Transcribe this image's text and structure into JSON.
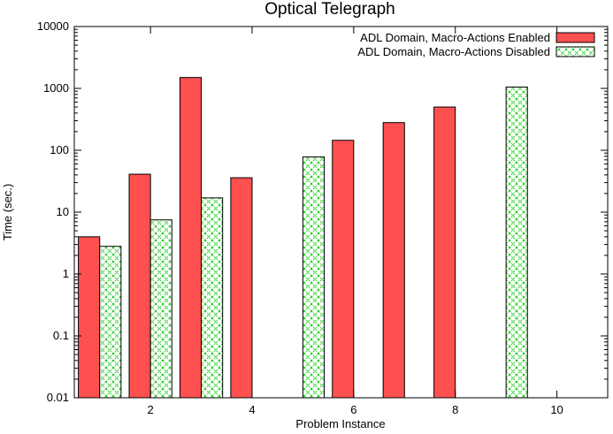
{
  "chart_data": {
    "type": "bar",
    "title": "Optical Telegraph",
    "xlabel": "Problem Instance",
    "ylabel": "Time (sec.)",
    "yscale": "log",
    "ylim": [
      0.01,
      10000
    ],
    "xlim": [
      0.5,
      11
    ],
    "y_ticks": [
      {
        "value": 0.01,
        "label": "0.01"
      },
      {
        "value": 0.1,
        "label": "0.1"
      },
      {
        "value": 1,
        "label": "1"
      },
      {
        "value": 10,
        "label": "10"
      },
      {
        "value": 100,
        "label": "100"
      },
      {
        "value": 1000,
        "label": "1000"
      },
      {
        "value": 10000,
        "label": "10000"
      }
    ],
    "x_ticks": [
      {
        "value": 2,
        "label": "2"
      },
      {
        "value": 4,
        "label": "4"
      },
      {
        "value": 6,
        "label": "6"
      },
      {
        "value": 8,
        "label": "8"
      },
      {
        "value": 10,
        "label": "10"
      }
    ],
    "categories": [
      1,
      2,
      3,
      4,
      5,
      6,
      7,
      8,
      9,
      10
    ],
    "legend_position": "top-right",
    "grid": false,
    "series": [
      {
        "name": "ADL Domain, Macro-Actions Enabled",
        "color": "#ff5050",
        "pattern": "solid",
        "values": [
          4,
          41,
          1500,
          36,
          null,
          145,
          280,
          500,
          null,
          null
        ]
      },
      {
        "name": "ADL Domain, Macro-Actions Disabled",
        "color": "#33cc33",
        "pattern": "crosshatch",
        "values": [
          2.8,
          7.5,
          17,
          null,
          78,
          null,
          null,
          null,
          1050,
          null
        ]
      }
    ]
  }
}
